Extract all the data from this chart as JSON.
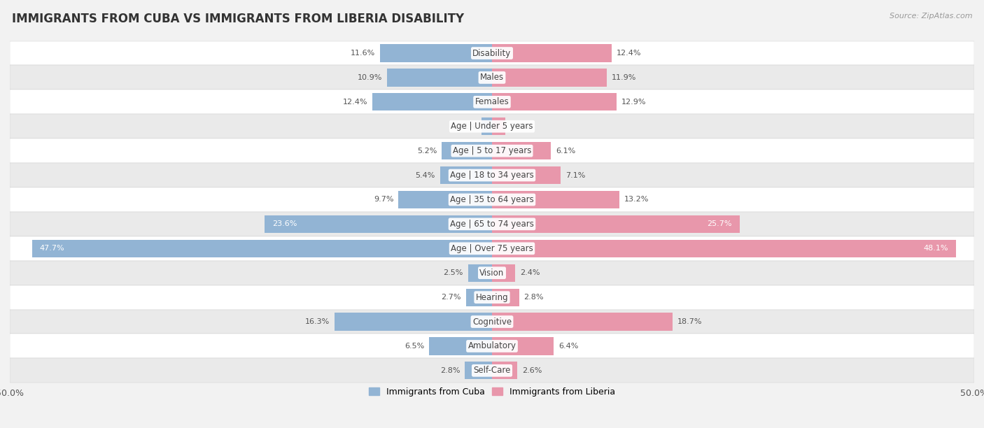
{
  "title": "IMMIGRANTS FROM CUBA VS IMMIGRANTS FROM LIBERIA DISABILITY",
  "source": "Source: ZipAtlas.com",
  "categories": [
    "Disability",
    "Males",
    "Females",
    "Age | Under 5 years",
    "Age | 5 to 17 years",
    "Age | 18 to 34 years",
    "Age | 35 to 64 years",
    "Age | 65 to 74 years",
    "Age | Over 75 years",
    "Vision",
    "Hearing",
    "Cognitive",
    "Ambulatory",
    "Self-Care"
  ],
  "cuba_values": [
    11.6,
    10.9,
    12.4,
    1.1,
    5.2,
    5.4,
    9.7,
    23.6,
    47.7,
    2.5,
    2.7,
    16.3,
    6.5,
    2.8
  ],
  "liberia_values": [
    12.4,
    11.9,
    12.9,
    1.4,
    6.1,
    7.1,
    13.2,
    25.7,
    48.1,
    2.4,
    2.8,
    18.7,
    6.4,
    2.6
  ],
  "cuba_color": "#92b4d4",
  "liberia_color": "#e897ab",
  "cuba_label": "Immigrants from Cuba",
  "liberia_label": "Immigrants from Liberia",
  "max_value": 50.0,
  "bg_color": "#f2f2f2",
  "row_color_even": "#ffffff",
  "row_color_odd": "#eaeaea",
  "title_fontsize": 12,
  "label_fontsize": 8.5,
  "value_fontsize": 8.0
}
